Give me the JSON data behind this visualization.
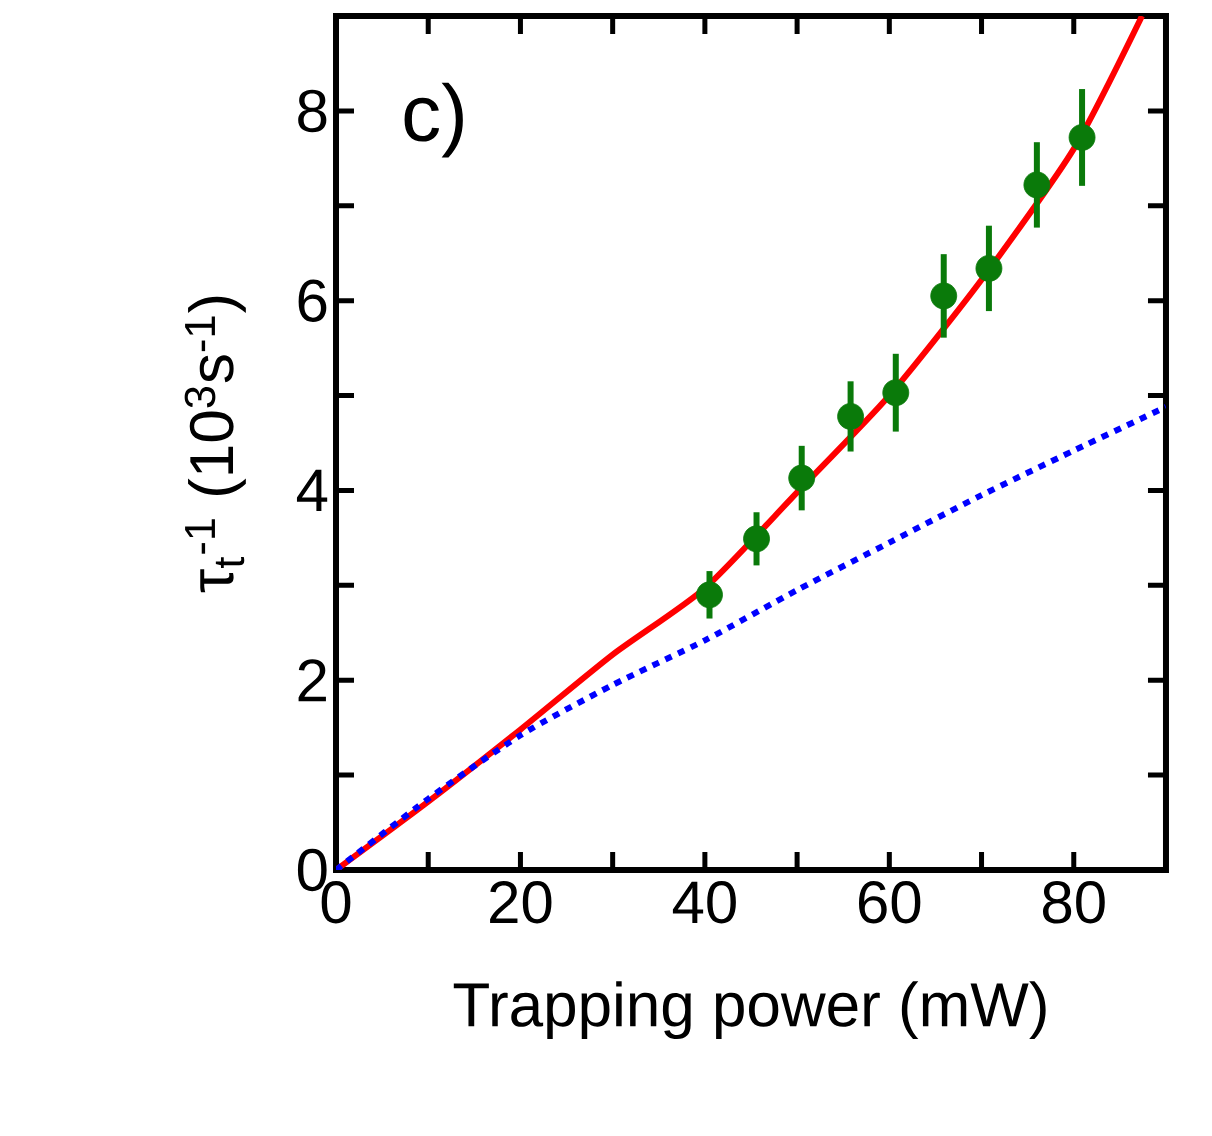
{
  "chart_data": {
    "type": "scatter",
    "xlabel": "Trapping power (mW)",
    "ylabel": "τ$_{t}$$^{-1}$ (10$^{3}$s$^{-1}$)",
    "annotations": [
      "c)"
    ],
    "xlim": [
      0,
      90
    ],
    "ylim": [
      0,
      9
    ],
    "xticks": [
      0,
      {
        "value": 10,
        "label": null
      },
      20,
      {
        "value": 30,
        "label": null
      },
      40,
      {
        "value": 50,
        "label": null
      },
      60,
      {
        "value": 70,
        "label": null
      },
      80
    ],
    "yticks": [
      0,
      {
        "value": 1,
        "label": null
      },
      2,
      {
        "value": 3,
        "label": null
      },
      4,
      {
        "value": 5,
        "label": null
      },
      6,
      {
        "value": 7,
        "label": null
      },
      8
    ],
    "series": [
      {
        "type": "line",
        "color": "#ff0000",
        "line_style": "solid",
        "marker": "none",
        "x": [
          0,
          10,
          20,
          30,
          40,
          50,
          60,
          70,
          80,
          87.4
        ],
        "values": [
          0,
          0.72,
          1.48,
          2.27,
          2.97,
          3.98,
          5.0,
          6.22,
          7.6,
          9.0
        ]
      },
      {
        "type": "line",
        "color": "#0000ff",
        "line_style": "dotted",
        "marker": "none",
        "x": [
          0,
          10,
          20,
          30,
          40,
          50,
          60,
          70,
          80,
          90
        ],
        "values": [
          0,
          0.75,
          1.42,
          1.95,
          2.42,
          2.95,
          3.45,
          3.95,
          4.42,
          4.88
        ]
      },
      {
        "color": "#0a7a0a",
        "marker": "circle",
        "x": [
          40.5,
          45.6,
          50.5,
          55.8,
          60.7,
          65.9,
          70.8,
          76.0,
          80.9
        ],
        "values": [
          2.9,
          3.49,
          4.13,
          4.78,
          5.03,
          6.05,
          6.34,
          7.22,
          7.72
        ],
        "errors": [
          0.25,
          0.28,
          0.34,
          0.37,
          0.41,
          0.44,
          0.45,
          0.45,
          0.51
        ]
      }
    ]
  }
}
